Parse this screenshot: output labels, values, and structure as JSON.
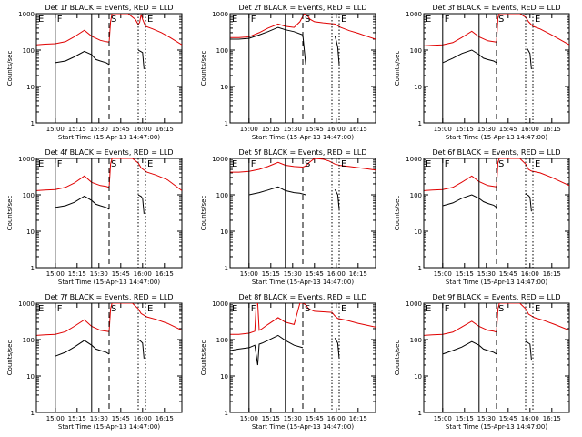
{
  "chart_data": {
    "type": "line",
    "start_time_label": "Start Time (15-Apr-13 14:47:00)",
    "ylabel": "Counts/sec",
    "yscale": "log",
    "ylim": [
      1,
      1000
    ],
    "yticks": [
      "1",
      "10",
      "100",
      "1000"
    ],
    "x_range_min": [
      0,
      100
    ],
    "xticks": [
      {
        "t": 13,
        "label": "15:00"
      },
      {
        "t": 28,
        "label": "15:15"
      },
      {
        "t": 43,
        "label": "15:30"
      },
      {
        "t": 58,
        "label": "15:45"
      },
      {
        "t": 73,
        "label": "16:00"
      },
      {
        "t": 88,
        "label": "16:15"
      }
    ],
    "markers": [
      {
        "label": "E",
        "t": 0,
        "style": "solid"
      },
      {
        "label": "F",
        "t": 13,
        "style": "solid"
      },
      {
        "label": "",
        "t": 38,
        "style": "solid"
      },
      {
        "label": "S",
        "t": 50,
        "style": "dashed"
      },
      {
        "label": "",
        "t": 70,
        "style": "dotted"
      },
      {
        "label": "E",
        "t": 75,
        "style": "dotted"
      }
    ],
    "legend_text": "BLACK = Events, RED = LLD",
    "panels": [
      {
        "title": "Det 1f BLACK = Events, RED = LLD",
        "series": [
          {
            "name": "Events",
            "color": "#000000",
            "t": [
              13,
              20,
              26,
              33,
              38,
              41,
              44,
              48,
              50
            ],
            "values": [
              45,
              50,
              65,
              92,
              75,
              55,
              50,
              45,
              40
            ]
          },
          {
            "name": "LLD",
            "color": "#e00000",
            "t": [
              0,
              6,
              13,
              20,
              26,
              33,
              38,
              44,
              48,
              50,
              51,
              52,
              54,
              58,
              63,
              68,
              70,
              71,
              72,
              73,
              75,
              80,
              86,
              92,
              100
            ],
            "values": [
              140,
              145,
              150,
              170,
              230,
              350,
              240,
              185,
              170,
              165,
              600,
              1000,
              1000,
              1000,
              1000,
              700,
              500,
              580,
              950,
              700,
              450,
              380,
              300,
              220,
              140
            ]
          },
          {
            "name": "Events (post-gap)",
            "color": "#000000",
            "t": [
              70,
              71,
              72,
              73,
              74
            ],
            "values": [
              100,
              95,
              90,
              85,
              30
            ]
          }
        ]
      },
      {
        "title": "Det 2f BLACK = Events, RED = LLD",
        "series": [
          {
            "name": "Events",
            "color": "#000000",
            "t": [
              0,
              6,
              13,
              20,
              26,
              33,
              38,
              44,
              50,
              52
            ],
            "values": [
              200,
              200,
              210,
              260,
              320,
              420,
              360,
              320,
              260,
              40
            ]
          },
          {
            "name": "LLD",
            "color": "#e00000",
            "t": [
              0,
              6,
              13,
              20,
              26,
              33,
              38,
              44,
              48,
              51,
              53,
              55,
              58,
              64,
              68,
              72,
              76,
              82,
              88,
              94,
              100
            ],
            "values": [
              220,
              220,
              230,
              300,
              400,
              520,
              450,
              420,
              600,
              1000,
              900,
              700,
              600,
              560,
              540,
              520,
              420,
              340,
              290,
              240,
              200
            ]
          },
          {
            "name": "Events (post-gap)",
            "color": "#000000",
            "t": [
              72,
              73,
              74,
              75
            ],
            "values": [
              250,
              180,
              120,
              40
            ]
          }
        ]
      },
      {
        "title": "Det 3f BLACK = Events, RED = LLD",
        "series": [
          {
            "name": "Events",
            "color": "#000000",
            "t": [
              13,
              20,
              26,
              33,
              38,
              41,
              44,
              48,
              50
            ],
            "values": [
              45,
              60,
              80,
              100,
              75,
              60,
              55,
              50,
              45
            ]
          },
          {
            "name": "LLD",
            "color": "#e00000",
            "t": [
              0,
              6,
              13,
              20,
              26,
              33,
              38,
              44,
              48,
              50,
              51,
              52,
              54,
              60,
              66,
              70,
              72,
              75,
              80,
              88,
              100
            ],
            "values": [
              130,
              135,
              140,
              160,
              220,
              330,
              230,
              180,
              170,
              165,
              800,
              1000,
              1000,
              1000,
              1000,
              800,
              600,
              450,
              380,
              260,
              140
            ]
          },
          {
            "name": "Events (post-gap)",
            "color": "#000000",
            "t": [
              71,
              72,
              73,
              74
            ],
            "values": [
              110,
              95,
              80,
              30
            ]
          }
        ]
      },
      {
        "title": "Det 4f BLACK = Events, RED = LLD",
        "series": [
          {
            "name": "Events",
            "color": "#000000",
            "t": [
              13,
              20,
              26,
              33,
              38,
              41,
              44,
              48,
              50
            ],
            "values": [
              45,
              50,
              62,
              92,
              70,
              55,
              50,
              45,
              40
            ]
          },
          {
            "name": "LLD",
            "color": "#e00000",
            "t": [
              0,
              6,
              13,
              20,
              26,
              33,
              38,
              44,
              48,
              50,
              51,
              52,
              54,
              60,
              66,
              70,
              72,
              76,
              82,
              90,
              100
            ],
            "values": [
              130,
              135,
              140,
              160,
              210,
              330,
              220,
              180,
              170,
              160,
              700,
              1000,
              1000,
              1000,
              1000,
              750,
              550,
              420,
              350,
              260,
              130
            ]
          },
          {
            "name": "Events (post-gap)",
            "color": "#000000",
            "t": [
              70,
              71,
              72,
              73,
              74
            ],
            "values": [
              100,
              95,
              90,
              80,
              30
            ]
          }
        ]
      },
      {
        "title": "Det 5f BLACK = Events, RED = LLD",
        "series": [
          {
            "name": "Events",
            "color": "#000000",
            "t": [
              13,
              20,
              26,
              33,
              38,
              44,
              48,
              52
            ],
            "values": [
              100,
              115,
              135,
              165,
              130,
              115,
              110,
              100
            ]
          },
          {
            "name": "LLD",
            "color": "#e00000",
            "t": [
              0,
              6,
              13,
              20,
              26,
              33,
              38,
              44,
              50,
              52,
              54,
              58,
              64,
              68,
              72,
              76,
              82,
              88,
              94,
              100
            ],
            "values": [
              420,
              420,
              440,
              500,
              600,
              780,
              650,
              600,
              580,
              620,
              750,
              1000,
              950,
              850,
              700,
              640,
              600,
              560,
              520,
              480
            ]
          },
          {
            "name": "Events (post-gap)",
            "color": "#000000",
            "t": [
              72,
              73,
              74,
              75
            ],
            "values": [
              140,
              120,
              100,
              40
            ]
          }
        ]
      },
      {
        "title": "Det 6f BLACK = Events, RED = LLD",
        "series": [
          {
            "name": "Events",
            "color": "#000000",
            "t": [
              13,
              20,
              26,
              33,
              38,
              41,
              44,
              48,
              50
            ],
            "values": [
              50,
              60,
              80,
              100,
              80,
              65,
              58,
              52,
              45
            ]
          },
          {
            "name": "LLD",
            "color": "#e00000",
            "t": [
              0,
              6,
              13,
              20,
              26,
              33,
              38,
              44,
              48,
              50,
              51,
              52,
              54,
              60,
              66,
              70,
              72,
              74,
              80,
              88,
              100
            ],
            "values": [
              130,
              135,
              140,
              160,
              220,
              330,
              230,
              180,
              170,
              165,
              800,
              1000,
              1000,
              1000,
              1000,
              700,
              500,
              450,
              400,
              300,
              180
            ]
          },
          {
            "name": "Events (post-gap)",
            "color": "#000000",
            "t": [
              70,
              71,
              72,
              73,
              74
            ],
            "values": [
              110,
              100,
              95,
              85,
              35
            ]
          }
        ]
      },
      {
        "title": "Det 7f BLACK = Events, RED = LLD",
        "series": [
          {
            "name": "Events",
            "color": "#000000",
            "t": [
              13,
              20,
              26,
              33,
              38,
              41,
              44,
              48,
              50
            ],
            "values": [
              35,
              45,
              62,
              95,
              70,
              55,
              50,
              45,
              40
            ]
          },
          {
            "name": "LLD",
            "color": "#e00000",
            "t": [
              0,
              6,
              13,
              20,
              26,
              33,
              38,
              44,
              48,
              50,
              51,
              52,
              54,
              60,
              66,
              70,
              72,
              76,
              82,
              90,
              100
            ],
            "values": [
              130,
              135,
              140,
              165,
              230,
              350,
              230,
              180,
              170,
              165,
              700,
              1000,
              1000,
              1000,
              1000,
              700,
              520,
              420,
              360,
              280,
              180
            ]
          },
          {
            "name": "Events (post-gap)",
            "color": "#000000",
            "t": [
              70,
              71,
              72,
              73,
              74
            ],
            "values": [
              100,
              95,
              88,
              80,
              30
            ]
          }
        ]
      },
      {
        "title": "Det 8f BLACK = Events, RED = LLD",
        "series": [
          {
            "name": "Events",
            "color": "#000000",
            "t": [
              0,
              6,
              13,
              17,
              19,
              20,
              22,
              26,
              33,
              38,
              44,
              50
            ],
            "values": [
              50,
              55,
              60,
              70,
              20,
              75,
              80,
              95,
              130,
              95,
              70,
              60
            ]
          },
          {
            "name": "LLD",
            "color": "#e00000",
            "t": [
              0,
              6,
              13,
              17,
              18,
              19,
              20,
              22,
              26,
              33,
              38,
              44,
              48,
              50,
              52,
              54,
              58,
              64,
              70,
              72,
              74,
              80,
              88,
              100
            ],
            "values": [
              140,
              140,
              150,
              170,
              1000,
              1000,
              180,
              200,
              260,
              400,
              300,
              260,
              1000,
              1000,
              900,
              700,
              600,
              580,
              560,
              450,
              380,
              340,
              280,
              220
            ]
          },
          {
            "name": "Events (post-gap)",
            "color": "#000000",
            "t": [
              72,
              73,
              74,
              75
            ],
            "values": [
              110,
              95,
              80,
              30
            ]
          }
        ]
      },
      {
        "title": "Det 9f BLACK = Events, RED = LLD",
        "series": [
          {
            "name": "Events",
            "color": "#000000",
            "t": [
              13,
              20,
              26,
              33,
              38,
              41,
              44,
              48,
              50
            ],
            "values": [
              40,
              50,
              62,
              88,
              70,
              55,
              50,
              45,
              40
            ]
          },
          {
            "name": "LLD",
            "color": "#e00000",
            "t": [
              0,
              6,
              13,
              20,
              26,
              33,
              38,
              44,
              48,
              50,
              51,
              52,
              54,
              60,
              66,
              70,
              72,
              76,
              82,
              90,
              100
            ],
            "values": [
              130,
              135,
              140,
              160,
              220,
              320,
              230,
              180,
              170,
              160,
              700,
              1000,
              1000,
              1000,
              1000,
              700,
              500,
              400,
              340,
              260,
              180
            ]
          },
          {
            "name": "Events (post-gap)",
            "color": "#000000",
            "t": [
              70,
              71,
              72,
              73,
              74
            ],
            "values": [
              90,
              85,
              80,
              75,
              28
            ]
          }
        ]
      }
    ]
  }
}
